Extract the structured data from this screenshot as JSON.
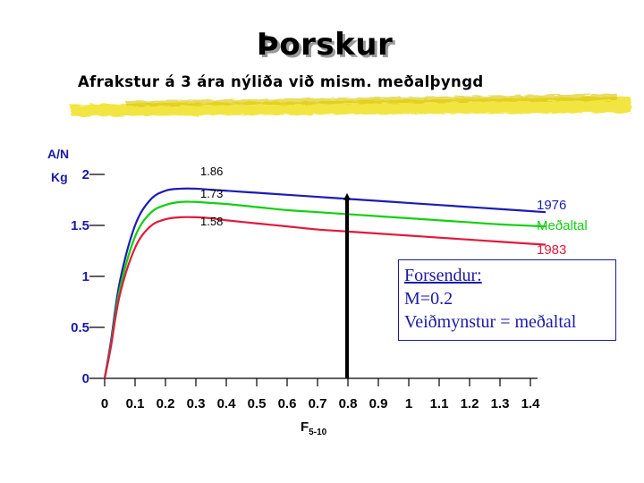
{
  "header": {
    "title": "Þorskur",
    "subtitle": "Afrakstur á 3 ára nýliða við mism. meðalþyngd"
  },
  "chart_data": {
    "type": "line",
    "ylabel_line1": "A/N",
    "ylabel_line2": "Kg",
    "xlabel_main": "F",
    "xlabel_sub": "5-10",
    "ylim": [
      0,
      2
    ],
    "xlim": [
      0,
      1.4
    ],
    "yticks": [
      "0",
      "0.5",
      "1",
      "1.5",
      "2"
    ],
    "ytick_values": [
      0,
      0.5,
      1,
      1.5,
      2
    ],
    "xticks": [
      "0",
      "0.1",
      "0.2",
      "0.3",
      "0.4",
      "0.5",
      "0.6",
      "0.7",
      "0.8",
      "0.9",
      "1",
      "1.1",
      "1.2",
      "1.3",
      "1.4"
    ],
    "x": [
      0,
      0.02,
      0.05,
      0.1,
      0.15,
      0.2,
      0.25,
      0.3,
      0.35,
      0.4,
      0.5,
      0.6,
      0.7,
      0.8,
      0.9,
      1.0,
      1.1,
      1.2,
      1.3,
      1.45
    ],
    "series": [
      {
        "name": "1976",
        "color": "#1c1cb4",
        "values": [
          0,
          0.35,
          0.95,
          1.5,
          1.75,
          1.84,
          1.86,
          1.86,
          1.85,
          1.84,
          1.82,
          1.8,
          1.78,
          1.76,
          1.74,
          1.72,
          1.7,
          1.68,
          1.66,
          1.63
        ]
      },
      {
        "name": "Meðaltal",
        "color": "#10d010",
        "values": [
          0,
          0.32,
          0.88,
          1.39,
          1.62,
          1.7,
          1.73,
          1.73,
          1.72,
          1.71,
          1.68,
          1.65,
          1.63,
          1.61,
          1.59,
          1.57,
          1.55,
          1.53,
          1.51,
          1.49
        ]
      },
      {
        "name": "1983",
        "color": "#e01a3c",
        "values": [
          0,
          0.3,
          0.82,
          1.28,
          1.49,
          1.56,
          1.58,
          1.58,
          1.57,
          1.55,
          1.52,
          1.49,
          1.46,
          1.44,
          1.42,
          1.4,
          1.38,
          1.36,
          1.34,
          1.31
        ]
      }
    ],
    "peak_labels": [
      "1.86",
      "1.73",
      "1.58"
    ],
    "reference_line": {
      "x": 0.8,
      "y": 1.73,
      "color": "#000000"
    },
    "box": {
      "title": "Forsendur:",
      "lines": [
        "M=0.2",
        "Veiðmynstur = meðaltal"
      ]
    }
  }
}
